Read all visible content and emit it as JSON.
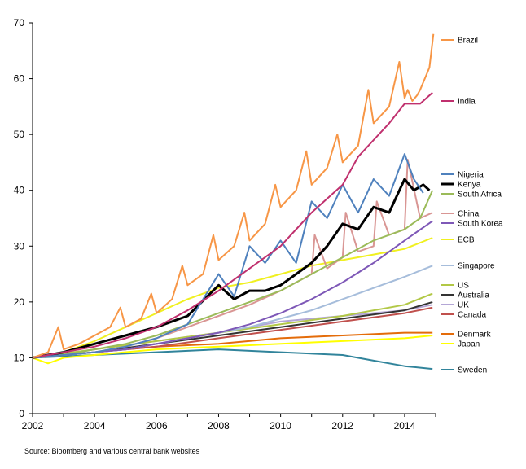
{
  "source": "Source: Bloomberg and various central bank websites",
  "chart_data": {
    "type": "line",
    "title": "",
    "xlabel": "",
    "ylabel": "",
    "xlim": [
      2002,
      2015
    ],
    "ylim": [
      0,
      70
    ],
    "xticks": [
      2002,
      2004,
      2006,
      2008,
      2010,
      2012,
      2014
    ],
    "yticks": [
      0,
      10,
      20,
      30,
      40,
      50,
      60,
      70
    ],
    "xtick_labels": [
      "2002",
      "2004",
      "2006",
      "2008",
      "2010",
      "2012",
      "2014"
    ],
    "ytick_labels": [
      "0",
      "10",
      "20",
      "30",
      "40",
      "50",
      "60",
      "70"
    ],
    "grid": false,
    "legend_position": "right",
    "series": [
      {
        "name": "Brazil",
        "color": "#f79646",
        "width": 2,
        "x": [
          2002.0,
          2002.5,
          2002.83,
          2003.0,
          2003.5,
          2004.0,
          2004.5,
          2004.83,
          2005.0,
          2005.5,
          2005.83,
          2006.0,
          2006.5,
          2006.83,
          2007.0,
          2007.5,
          2007.83,
          2008.0,
          2008.5,
          2008.83,
          2009.0,
          2009.5,
          2009.83,
          2010.0,
          2010.5,
          2010.83,
          2011.0,
          2011.5,
          2011.83,
          2012.0,
          2012.5,
          2012.83,
          2013.0,
          2013.5,
          2013.83,
          2014.0,
          2014.1,
          2014.25,
          2014.4,
          2014.5,
          2014.65,
          2014.8,
          2014.93
        ],
        "y": [
          10,
          11,
          15.5,
          11.5,
          12.5,
          14,
          15.5,
          19,
          15.5,
          17,
          21.5,
          18,
          20.5,
          26.5,
          23,
          25,
          32,
          27.5,
          30,
          36,
          31,
          34,
          41,
          37,
          40,
          47,
          41,
          44,
          50,
          45,
          48,
          58,
          52,
          55,
          63,
          56.5,
          58,
          56,
          57,
          58,
          60,
          62,
          68
        ]
      },
      {
        "name": "India",
        "color": "#c0306e",
        "width": 2,
        "x": [
          2002,
          2003,
          2004,
          2005,
          2006,
          2007,
          2008,
          2009,
          2010,
          2011,
          2012,
          2012.5,
          2013,
          2013.5,
          2014,
          2014.5,
          2014.9
        ],
        "y": [
          10,
          11,
          12,
          13.5,
          15.5,
          18.5,
          22,
          26,
          30,
          36,
          41,
          46,
          49,
          52,
          55.5,
          55.5,
          57.5
        ]
      },
      {
        "name": "Nigeria",
        "color": "#4f81bd",
        "width": 2,
        "x": [
          2002,
          2003,
          2004,
          2005,
          2006,
          2007,
          2008,
          2008.5,
          2009,
          2009.5,
          2010,
          2010.5,
          2011,
          2011.5,
          2012,
          2012.5,
          2013,
          2013.5,
          2014,
          2014.3,
          2014.6
        ],
        "y": [
          10,
          10.5,
          11,
          12,
          13.5,
          16,
          25,
          21,
          30,
          27,
          31,
          27,
          38,
          35,
          41,
          36,
          42,
          39,
          46.5,
          42,
          39.5
        ]
      },
      {
        "name": "Kenya",
        "color": "#000000",
        "width": 3,
        "x": [
          2002,
          2003,
          2004,
          2005,
          2006,
          2007,
          2008,
          2008.5,
          2009,
          2009.5,
          2010,
          2010.5,
          2011,
          2011.5,
          2012,
          2012.5,
          2013,
          2013.5,
          2014,
          2014.3,
          2014.6,
          2014.8
        ],
        "y": [
          10,
          11,
          12.5,
          14,
          15.5,
          17.5,
          23,
          20.5,
          22,
          22,
          23,
          25,
          27,
          30,
          34,
          33,
          37,
          36,
          42,
          40,
          41,
          40
        ]
      },
      {
        "name": "South Africa",
        "color": "#9bbb59",
        "width": 2,
        "x": [
          2002,
          2003,
          2004,
          2005,
          2006,
          2007,
          2008,
          2009,
          2010,
          2011,
          2012,
          2013,
          2014,
          2014.5,
          2014.9
        ],
        "y": [
          10,
          10.5,
          11.5,
          12.5,
          14,
          16,
          18,
          20,
          22,
          25,
          28,
          31,
          33,
          35,
          40
        ]
      },
      {
        "name": "China",
        "color": "#d99694",
        "width": 2,
        "x": [
          2002,
          2003,
          2004,
          2005,
          2006,
          2007,
          2008,
          2009,
          2010,
          2011,
          2011.1,
          2011.5,
          2012,
          2012.1,
          2012.5,
          2013,
          2013.1,
          2013.5,
          2014,
          2014.1,
          2014.5,
          2014.9
        ],
        "y": [
          10,
          10.5,
          11,
          12,
          13.5,
          15.5,
          17.5,
          19.5,
          22,
          25,
          32,
          26,
          28,
          36,
          29,
          30,
          38,
          32,
          33,
          45.5,
          35,
          36
        ]
      },
      {
        "name": "South Korea",
        "color": "#7e58b7",
        "width": 2,
        "x": [
          2002,
          2003,
          2004,
          2005,
          2006,
          2007,
          2008,
          2009,
          2010,
          2011,
          2012,
          2013,
          2014,
          2014.9
        ],
        "y": [
          10,
          10.5,
          11,
          11.5,
          12.5,
          13.5,
          14.5,
          16,
          18,
          20.5,
          23.5,
          27,
          31,
          34.5
        ]
      },
      {
        "name": "ECB",
        "color": "#f0f020",
        "width": 2,
        "x": [
          2002,
          2003,
          2004,
          2005,
          2006,
          2007,
          2008,
          2009,
          2010,
          2011,
          2012,
          2013,
          2014,
          2014.9
        ],
        "y": [
          10,
          11,
          13,
          15.5,
          18,
          20.5,
          22.5,
          23.5,
          25,
          26.5,
          27.5,
          28.5,
          29.5,
          31.5
        ]
      },
      {
        "name": "Singapore",
        "color": "#a6bddb",
        "width": 2,
        "x": [
          2002,
          2003,
          2004,
          2005,
          2006,
          2007,
          2008,
          2009,
          2010,
          2011,
          2012,
          2013,
          2014,
          2014.9
        ],
        "y": [
          10,
          10.5,
          11,
          11.5,
          12.5,
          13.5,
          14.5,
          15.5,
          17,
          18.5,
          20.5,
          22.5,
          24.5,
          26.5
        ]
      },
      {
        "name": "US",
        "color": "#b2c846",
        "width": 2,
        "x": [
          2002,
          2004,
          2006,
          2008,
          2010,
          2012,
          2014,
          2014.9
        ],
        "y": [
          10,
          11.5,
          13,
          14.5,
          16,
          17.5,
          19.5,
          21.5
        ]
      },
      {
        "name": "Australia",
        "color": "#333333",
        "width": 2,
        "x": [
          2002,
          2004,
          2006,
          2008,
          2010,
          2012,
          2014,
          2014.9
        ],
        "y": [
          10,
          11,
          12.5,
          14,
          15.5,
          17,
          18.5,
          20
        ]
      },
      {
        "name": "UK",
        "color": "#b4a7d6",
        "width": 2,
        "x": [
          2002,
          2004,
          2006,
          2008,
          2010,
          2012,
          2014,
          2014.9
        ],
        "y": [
          10,
          11.5,
          13,
          14.5,
          16.5,
          17.5,
          18.5,
          19.5
        ]
      },
      {
        "name": "Canada",
        "color": "#c0504d",
        "width": 2,
        "x": [
          2002,
          2004,
          2006,
          2008,
          2010,
          2012,
          2014,
          2014.9
        ],
        "y": [
          10,
          11,
          12,
          13.5,
          15,
          16.5,
          18,
          19
        ]
      },
      {
        "name": "Denmark",
        "color": "#e46c0a",
        "width": 2,
        "x": [
          2002,
          2004,
          2006,
          2008,
          2010,
          2012,
          2014,
          2014.9
        ],
        "y": [
          10,
          11,
          12,
          12.5,
          13.5,
          14,
          14.5,
          14.5
        ]
      },
      {
        "name": "Japan",
        "color": "#ffff00",
        "width": 2,
        "x": [
          2002,
          2002.5,
          2003,
          2004,
          2006,
          2008,
          2010,
          2012,
          2014,
          2014.9
        ],
        "y": [
          10,
          9,
          10,
          10.5,
          11.5,
          12,
          12.5,
          13,
          13.5,
          14
        ]
      },
      {
        "name": "Sweden",
        "color": "#31849b",
        "width": 2,
        "x": [
          2002,
          2004,
          2006,
          2008,
          2010,
          2012,
          2013,
          2014,
          2014.9
        ],
        "y": [
          10,
          10.5,
          11,
          11.5,
          11,
          10.5,
          9.5,
          8.5,
          8
        ]
      }
    ],
    "legend": [
      {
        "name": "Brazil",
        "color": "#f79646"
      },
      {
        "name": "India",
        "color": "#c0306e"
      },
      {
        "name": "Nigeria",
        "color": "#4f81bd"
      },
      {
        "name": "Kenya",
        "color": "#000000"
      },
      {
        "name": "South Africa",
        "color": "#9bbb59"
      },
      {
        "name": "China",
        "color": "#d99694"
      },
      {
        "name": "South Korea",
        "color": "#7e58b7"
      },
      {
        "name": "ECB",
        "color": "#f0f020"
      },
      {
        "name": "Singapore",
        "color": "#a6bddb"
      },
      {
        "name": "US",
        "color": "#b2c846"
      },
      {
        "name": "Australia",
        "color": "#333333"
      },
      {
        "name": "UK",
        "color": "#b4a7d6"
      },
      {
        "name": "Canada",
        "color": "#c0504d"
      },
      {
        "name": "Denmark",
        "color": "#e46c0a"
      },
      {
        "name": "Japan",
        "color": "#ffff00"
      },
      {
        "name": "Sweden",
        "color": "#31849b"
      }
    ]
  }
}
